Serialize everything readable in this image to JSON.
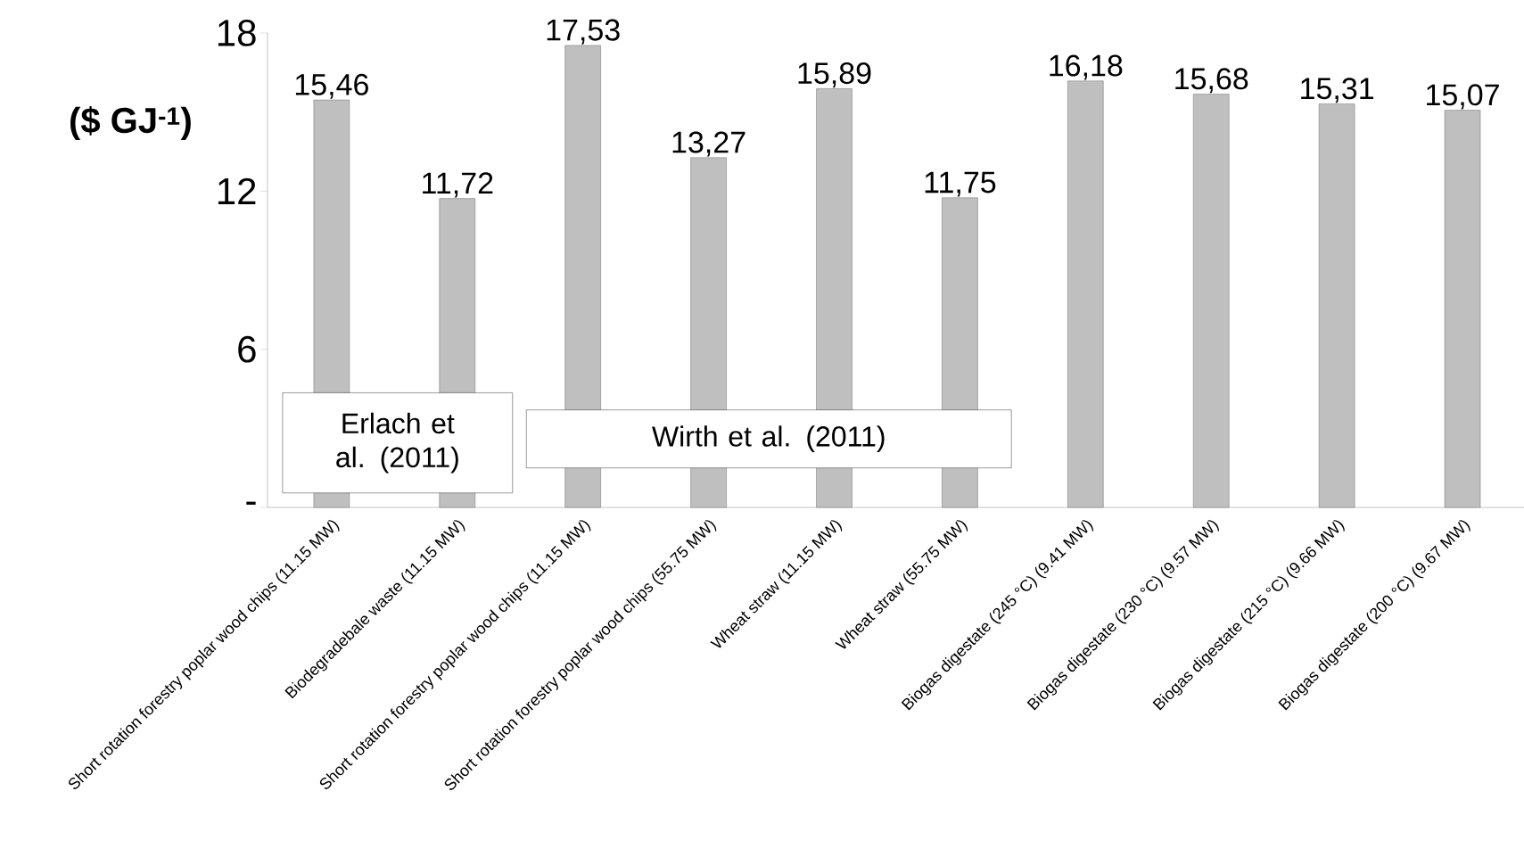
{
  "chart_data": {
    "type": "bar",
    "ylabel": "($ GJ$^{-1}$)",
    "categories": [
      "Short rotation forestry poplar wood chips (11.15 MW)",
      "Biodegradebale waste (11.15 MW)",
      "Short rotation forestry poplar wood chips (11.15 MW)",
      "Short rotation forestry poplar wood chips (55.75 MW)",
      "Wheat straw (11.15 MW)",
      "Wheat straw (55.75 MW)",
      "Biogas digestate (245 °C) (9.41 MW)",
      "Biogas digestate (230 °C) (9.57 MW)",
      "Biogas digestate (215 °C) (9.66 MW)",
      "Biogas digestate (200 °C) (9.67 MW)"
    ],
    "values": [
      15.46,
      11.72,
      17.53,
      13.27,
      15.89,
      11.75,
      16.18,
      15.68,
      15.31,
      15.07
    ],
    "value_labels": [
      "15,46",
      "11,72",
      "17,53",
      "13,27",
      "15,89",
      "11,75",
      "16,18",
      "15,68",
      "15,31",
      "15,07"
    ],
    "color": "#bfbfbf",
    "ylim": [
      0,
      18
    ],
    "yticks": [
      {
        "value": 0,
        "label": "-"
      },
      6,
      12,
      18
    ],
    "annotations": [
      "Erlach et al. (2011)",
      "Wirth et al. (2011)"
    ]
  }
}
